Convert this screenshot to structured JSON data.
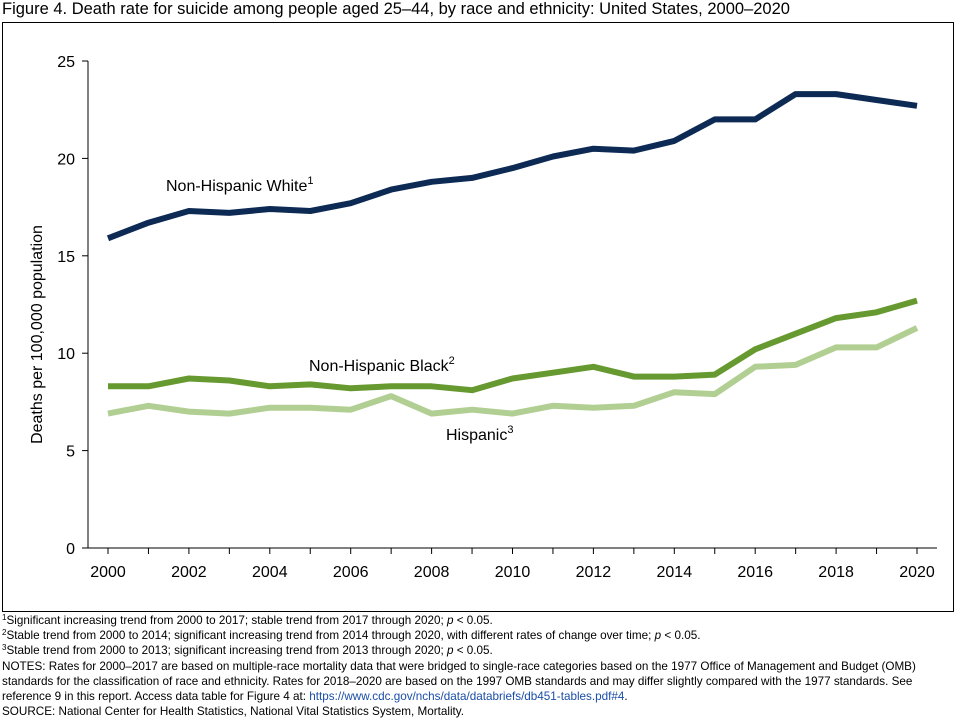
{
  "figure": {
    "title": "Figure 4. Death rate for suicide among people aged 25–44, by race and ethnicity: United States, 2000–2020"
  },
  "chart_data": {
    "type": "line",
    "title": "Figure 4. Death rate for suicide among people aged 25–44, by race and ethnicity: United States, 2000–2020",
    "xlabel": "",
    "ylabel": "Deaths per 100,000 population",
    "x": [
      2000,
      2001,
      2002,
      2003,
      2004,
      2005,
      2006,
      2007,
      2008,
      2009,
      2010,
      2011,
      2012,
      2013,
      2014,
      2015,
      2016,
      2017,
      2018,
      2019,
      2020
    ],
    "x_ticks": [
      "2000",
      "2002",
      "2004",
      "2006",
      "2008",
      "2010",
      "2012",
      "2014",
      "2016",
      "2018",
      "2020"
    ],
    "y_ticks": [
      "0",
      "5",
      "10",
      "15",
      "20",
      "25"
    ],
    "ylim": [
      0,
      25
    ],
    "grid": false,
    "series": [
      {
        "name": "Non-Hispanic White",
        "footnote": "1",
        "color": "#0d2a54",
        "values": [
          15.9,
          16.7,
          17.3,
          17.2,
          17.4,
          17.3,
          17.7,
          18.4,
          18.8,
          19.0,
          19.5,
          20.1,
          20.5,
          20.4,
          20.9,
          22.0,
          22.0,
          23.3,
          23.3,
          23.0,
          22.7
        ]
      },
      {
        "name": "Non-Hispanic Black",
        "footnote": "2",
        "color": "#66992f",
        "values": [
          8.3,
          8.3,
          8.7,
          8.6,
          8.3,
          8.4,
          8.2,
          8.3,
          8.3,
          8.1,
          8.7,
          9.0,
          9.3,
          8.8,
          8.8,
          8.9,
          10.2,
          11.0,
          11.8,
          12.1,
          12.7
        ]
      },
      {
        "name": "Hispanic",
        "footnote": "3",
        "color": "#b2cf93",
        "values": [
          6.9,
          7.3,
          7.0,
          6.9,
          7.2,
          7.2,
          7.1,
          7.8,
          6.9,
          7.1,
          6.9,
          7.3,
          7.2,
          7.3,
          8.0,
          7.9,
          9.3,
          9.4,
          10.3,
          10.3,
          11.3
        ]
      }
    ]
  },
  "notes": {
    "fn1": "Significant increasing trend from 2000 to 2017; stable trend from 2017 through 2020; ",
    "fn2": "Stable trend from 2000 to 2014; significant increasing trend from 2014 through 2020, with different rates of change over time; ",
    "fn3": "Stable trend from 2000 to 2013; significant increasing trend from 2013 through 2020; ",
    "p_symbol": "p",
    "p_value": " < 0.05.",
    "notes_text": "NOTES: Rates for 2000–2017 are based on multiple-race mortality data that were bridged to single-race categories based on the 1977 Office of Management and Budget (OMB) standards for the classification of race and ethnicity. Rates for 2018–2020 are based on the 1997 OMB standards and may differ slightly compared with the 1977 standards. See reference 9 in this report. Access data table for Figure 4 at: ",
    "link": "https://www.cdc.gov/nchs/data/databriefs/db451-tables.pdf#4",
    "link_end": ".",
    "source": "SOURCE: National Center for Health Statistics, National Vital Statistics System, Mortality."
  }
}
